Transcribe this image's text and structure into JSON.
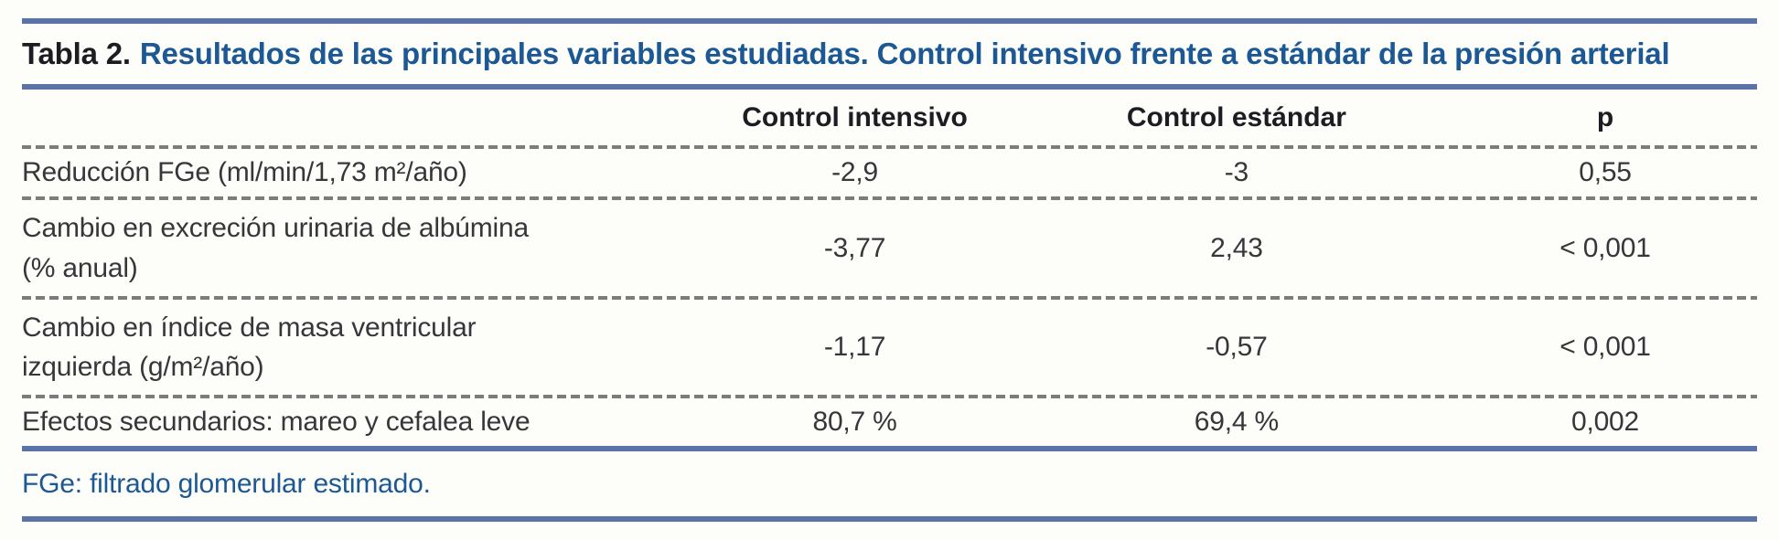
{
  "page": {
    "background": "#fdfdfa",
    "type": "journal-article-table"
  },
  "colors": {
    "accent_rule_blue": "#5a74a8",
    "title_blue": "#1b5894",
    "heading_black": "#1c1c22",
    "body_text": "#37373b",
    "dash_separator_gray": "#7c7c7c"
  },
  "title": {
    "prefix": "Tabla 2.",
    "text": "Resultados de las principales variables estudiadas. Control intensivo frente a estándar de la presión arterial"
  },
  "table": {
    "columns": [
      "Control intensivo",
      "Control estándar",
      "p"
    ],
    "rows": [
      {
        "label": "Reducción FGe (ml/min/1,73 m²/año)",
        "intensivo": "-2,9",
        "estandar": "-3",
        "p": "0,55"
      },
      {
        "label": "Cambio en excreción urinaria de albúmina\n(% anual)",
        "intensivo": "-3,77",
        "estandar": "2,43",
        "p": "< 0,001"
      },
      {
        "label": "Cambio en índice de masa ventricular\nizquierda (g/m²/año)",
        "intensivo": "-1,17",
        "estandar": "-0,57",
        "p": "< 0,001"
      },
      {
        "label": "Efectos secundarios: mareo y cefalea leve",
        "intensivo": "80,7 %",
        "estandar": "69,4 %",
        "p": "0,002"
      }
    ]
  },
  "footnote": "FGe: filtrado glomerular estimado."
}
